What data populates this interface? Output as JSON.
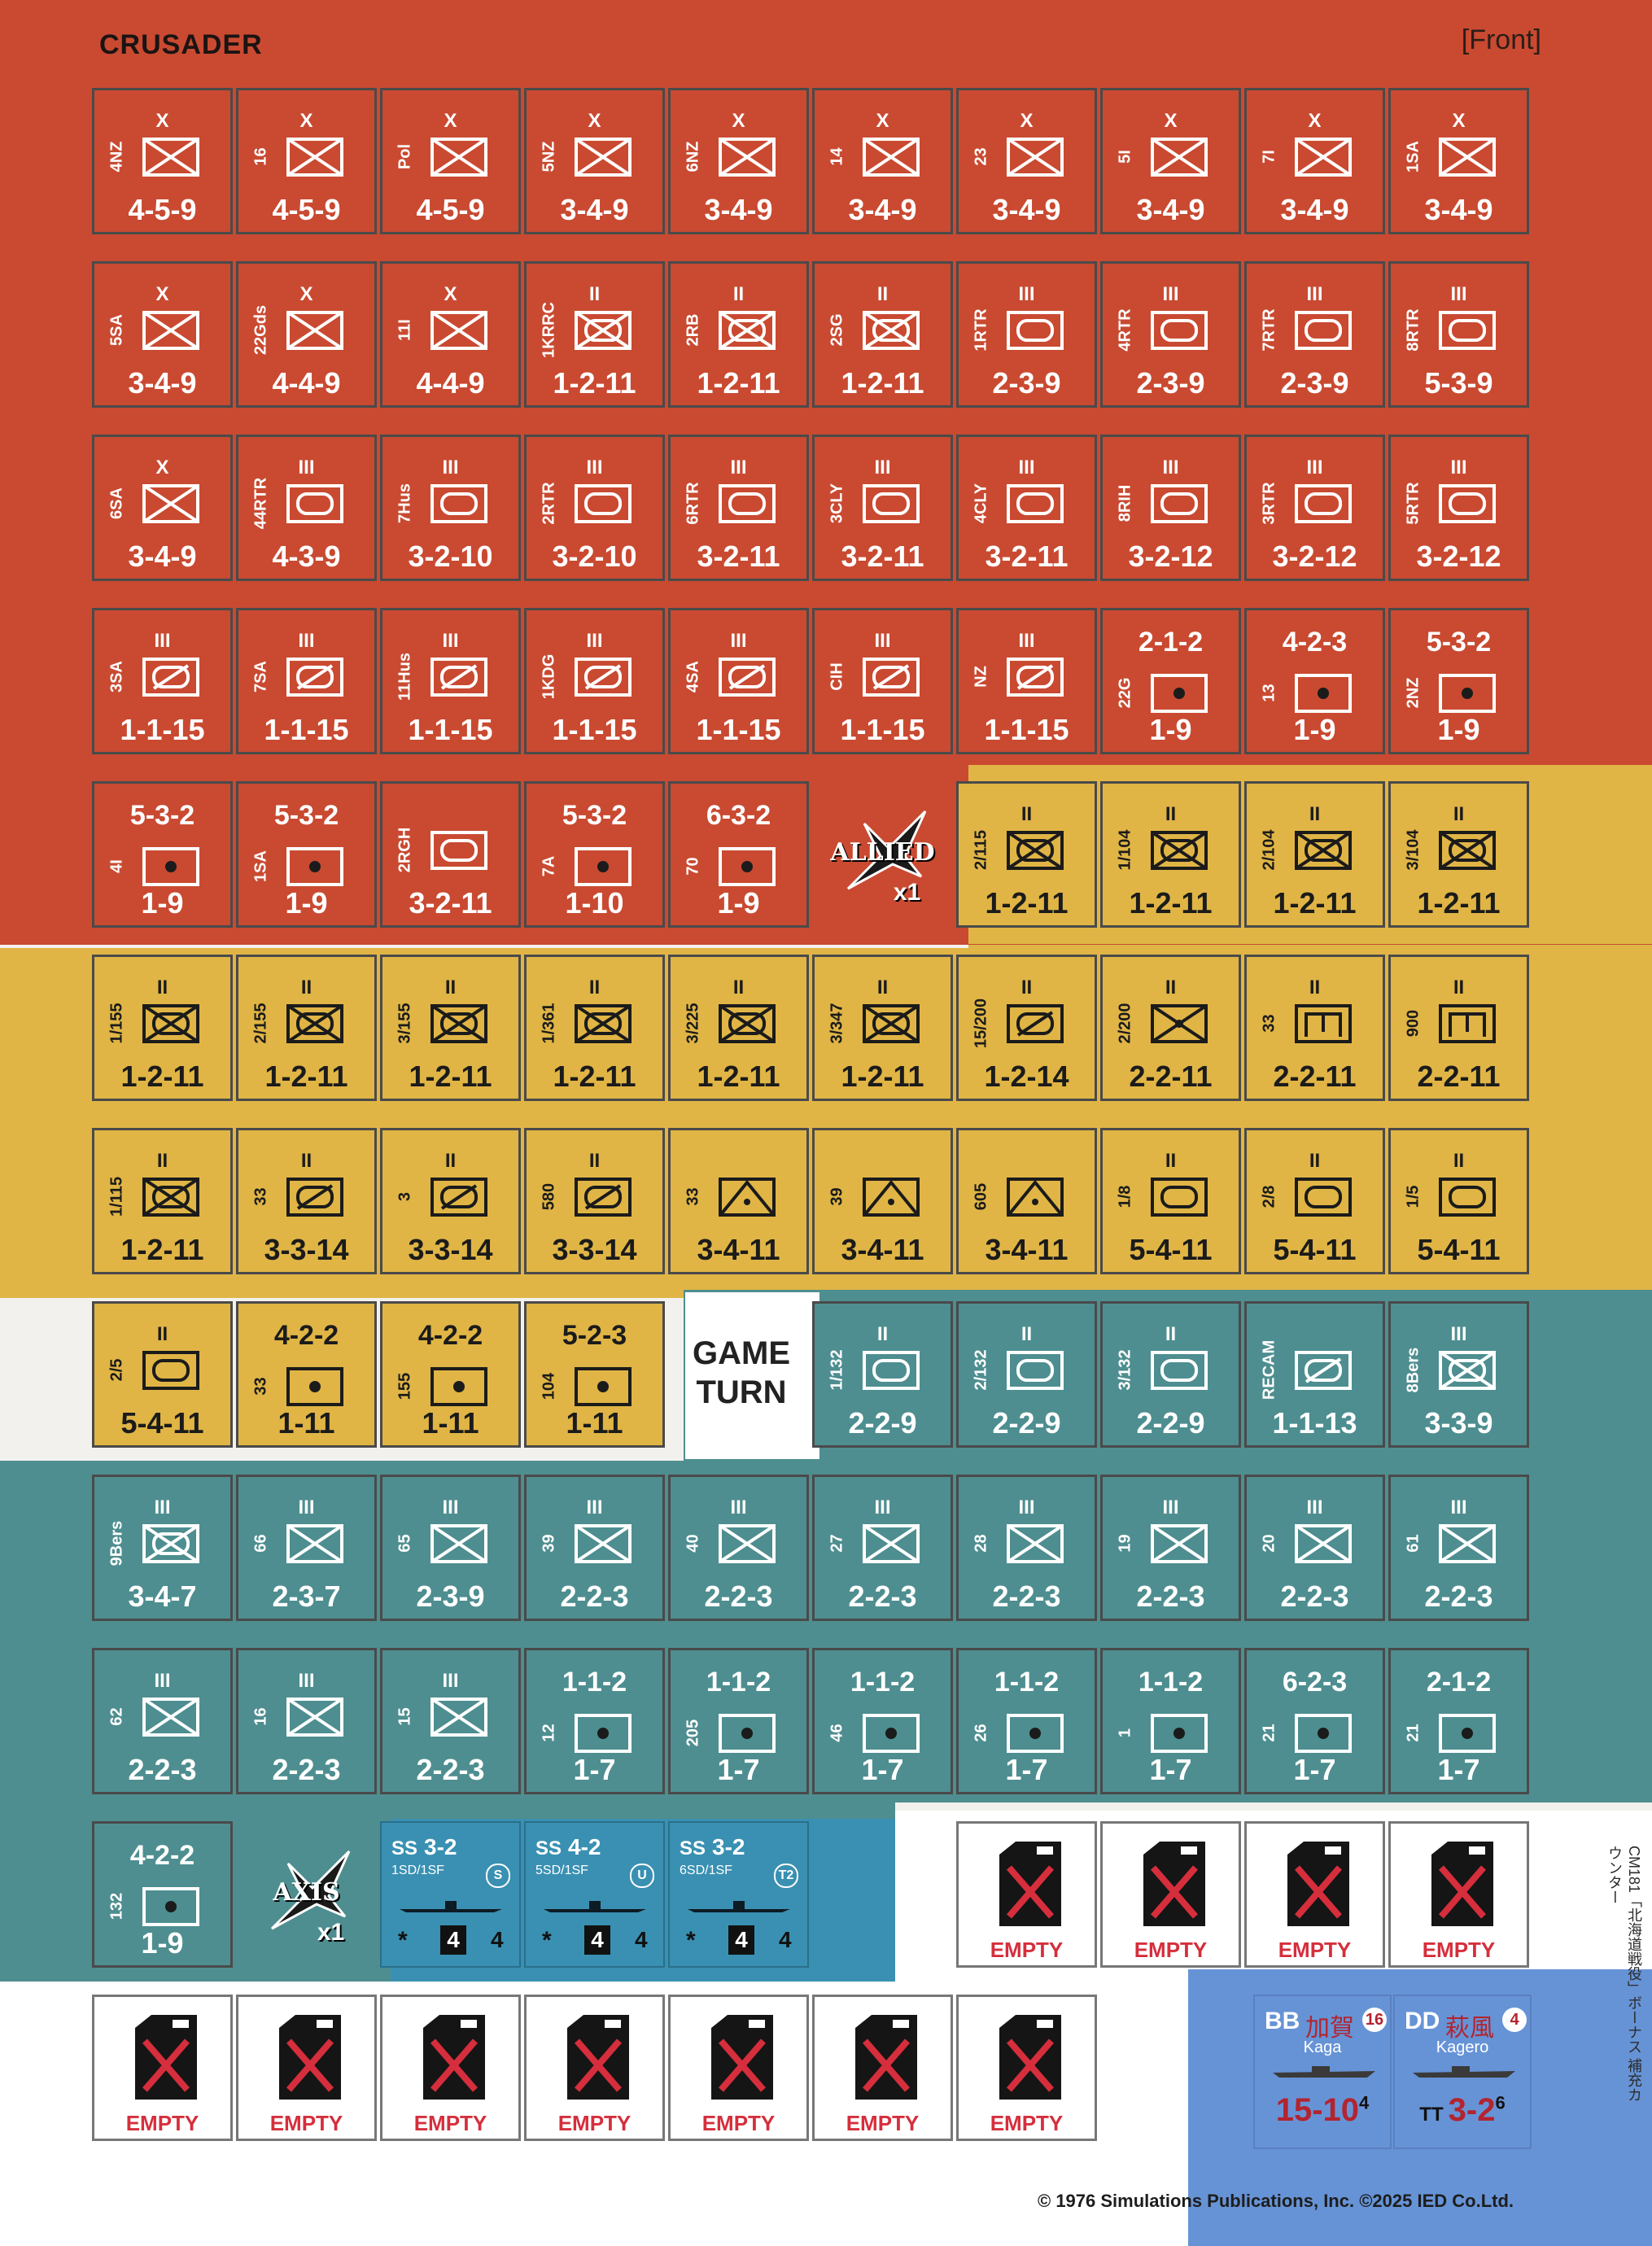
{
  "header": {
    "title": "CRUSADER",
    "side": "[Front]"
  },
  "colors": {
    "allied": "#c94a31",
    "italian": "#e0b545",
    "german": "#4e8e90",
    "special": "#3a90b2",
    "fuel": "#ffffff",
    "ships": "#6693d6",
    "empty_red": "#d62e3c"
  },
  "rows": [
    [
      {
        "id": "4NZ",
        "size": "X",
        "sym": "inf",
        "vals": "4-5-9"
      },
      {
        "id": "16",
        "size": "X",
        "sym": "inf",
        "vals": "4-5-9"
      },
      {
        "id": "Pol",
        "size": "X",
        "sym": "inf",
        "vals": "4-5-9"
      },
      {
        "id": "5NZ",
        "size": "X",
        "sym": "inf",
        "vals": "3-4-9"
      },
      {
        "id": "6NZ",
        "size": "X",
        "sym": "inf",
        "vals": "3-4-9"
      },
      {
        "id": "14",
        "size": "X",
        "sym": "inf",
        "vals": "3-4-9"
      },
      {
        "id": "23",
        "size": "X",
        "sym": "inf",
        "vals": "3-4-9"
      },
      {
        "id": "5I",
        "size": "X",
        "sym": "inf",
        "vals": "3-4-9"
      },
      {
        "id": "7I",
        "size": "X",
        "sym": "inf",
        "vals": "3-4-9"
      },
      {
        "id": "1SA",
        "size": "X",
        "sym": "inf",
        "vals": "3-4-9"
      }
    ],
    [
      {
        "id": "5SA",
        "size": "X",
        "sym": "inf",
        "vals": "3-4-9"
      },
      {
        "id": "22Gds",
        "size": "X",
        "sym": "inf",
        "vals": "4-4-9"
      },
      {
        "id": "11I",
        "size": "X",
        "sym": "inf",
        "vals": "4-4-9"
      },
      {
        "id": "1KRRC",
        "size": "II",
        "sym": "mech",
        "vals": "1-2-11"
      },
      {
        "id": "2RB",
        "size": "II",
        "sym": "mech",
        "vals": "1-2-11"
      },
      {
        "id": "2SG",
        "size": "II",
        "sym": "mech",
        "vals": "1-2-11"
      },
      {
        "id": "1RTR",
        "size": "III",
        "sym": "armor",
        "vals": "2-3-9"
      },
      {
        "id": "4RTR",
        "size": "III",
        "sym": "armor",
        "vals": "2-3-9"
      },
      {
        "id": "7RTR",
        "size": "III",
        "sym": "armor",
        "vals": "2-3-9"
      },
      {
        "id": "8RTR",
        "size": "III",
        "sym": "armor",
        "vals": "5-3-9"
      }
    ],
    [
      {
        "id": "6SA",
        "size": "X",
        "sym": "inf",
        "vals": "3-4-9"
      },
      {
        "id": "44RTR",
        "size": "III",
        "sym": "armor",
        "vals": "4-3-9"
      },
      {
        "id": "7Hus",
        "size": "III",
        "sym": "armor",
        "vals": "3-2-10"
      },
      {
        "id": "2RTR",
        "size": "III",
        "sym": "armor",
        "vals": "3-2-10"
      },
      {
        "id": "6RTR",
        "size": "III",
        "sym": "armor",
        "vals": "3-2-11"
      },
      {
        "id": "3CLY",
        "size": "III",
        "sym": "armor",
        "vals": "3-2-11"
      },
      {
        "id": "4CLY",
        "size": "III",
        "sym": "armor",
        "vals": "3-2-11"
      },
      {
        "id": "8RIH",
        "size": "III",
        "sym": "armor",
        "vals": "3-2-12"
      },
      {
        "id": "3RTR",
        "size": "III",
        "sym": "armor",
        "vals": "3-2-12"
      },
      {
        "id": "5RTR",
        "size": "III",
        "sym": "armor",
        "vals": "3-2-12"
      }
    ],
    [
      {
        "id": "3SA",
        "size": "III",
        "sym": "recon",
        "vals": "1-1-15"
      },
      {
        "id": "7SA",
        "size": "III",
        "sym": "recon",
        "vals": "1-1-15"
      },
      {
        "id": "11Hus",
        "size": "III",
        "sym": "recon",
        "vals": "1-1-15"
      },
      {
        "id": "1KDG",
        "size": "III",
        "sym": "recon",
        "vals": "1-1-15"
      },
      {
        "id": "4SA",
        "size": "III",
        "sym": "recon",
        "vals": "1-1-15"
      },
      {
        "id": "CIH",
        "size": "III",
        "sym": "recon",
        "vals": "1-1-15"
      },
      {
        "id": "NZ",
        "size": "III",
        "sym": "recon",
        "vals": "1-1-15"
      },
      {
        "id": "22G",
        "top": "2-1-2",
        "sym": "art",
        "vals": "1-9"
      },
      {
        "id": "13",
        "top": "4-2-3",
        "sym": "art",
        "vals": "1-9"
      },
      {
        "id": "2NZ",
        "top": "5-3-2",
        "sym": "art",
        "vals": "1-9"
      }
    ],
    [
      {
        "id": "4I",
        "top": "5-3-2",
        "sym": "art",
        "vals": "1-9"
      },
      {
        "id": "1SA",
        "top": "5-3-2",
        "sym": "art",
        "vals": "1-9"
      },
      {
        "id": "2RGH",
        "size": "",
        "sym": "armor",
        "vals": "3-2-11"
      },
      {
        "id": "7A",
        "top": "5-3-2",
        "sym": "art",
        "vals": "1-10"
      },
      {
        "id": "70",
        "top": "6-3-2",
        "sym": "art",
        "vals": "1-9"
      },
      {
        "air": "ALLIED",
        "mult": "x1"
      },
      {
        "id": "2/115",
        "size": "II",
        "sym": "mech",
        "vals": "1-2-11"
      },
      {
        "id": "1/104",
        "size": "II",
        "sym": "mech",
        "vals": "1-2-11"
      },
      {
        "id": "2/104",
        "size": "II",
        "sym": "mech",
        "vals": "1-2-11"
      },
      {
        "id": "3/104",
        "size": "II",
        "sym": "mech",
        "vals": "1-2-11"
      }
    ],
    [
      {
        "id": "1/155",
        "size": "II",
        "sym": "mech",
        "vals": "1-2-11"
      },
      {
        "id": "2/155",
        "size": "II",
        "sym": "mech",
        "vals": "1-2-11"
      },
      {
        "id": "3/155",
        "size": "II",
        "sym": "mech",
        "vals": "1-2-11"
      },
      {
        "id": "1/361",
        "size": "II",
        "sym": "mech",
        "vals": "1-2-11"
      },
      {
        "id": "3/225",
        "size": "II",
        "sym": "mech",
        "vals": "1-2-11"
      },
      {
        "id": "3/347",
        "size": "II",
        "sym": "mech",
        "vals": "1-2-11"
      },
      {
        "id": "15/200",
        "size": "II",
        "sym": "recon",
        "vals": "1-2-14"
      },
      {
        "id": "2/200",
        "size": "II",
        "sym": "mg",
        "vals": "2-2-11"
      },
      {
        "id": "33",
        "size": "II",
        "sym": "eng",
        "vals": "2-2-11"
      },
      {
        "id": "900",
        "size": "II",
        "sym": "eng",
        "vals": "2-2-11"
      }
    ],
    [
      {
        "id": "1/115",
        "size": "II",
        "sym": "mech",
        "vals": "1-2-11"
      },
      {
        "id": "33",
        "size": "II",
        "sym": "recon",
        "vals": "3-3-14"
      },
      {
        "id": "3",
        "size": "II",
        "sym": "recon",
        "vals": "3-3-14"
      },
      {
        "id": "580",
        "size": "II",
        "sym": "recon",
        "vals": "3-3-14"
      },
      {
        "id": "33",
        "size": "",
        "sym": "at",
        "vals": "3-4-11"
      },
      {
        "id": "39",
        "size": "",
        "sym": "at",
        "vals": "3-4-11"
      },
      {
        "id": "605",
        "size": "",
        "sym": "at",
        "vals": "3-4-11"
      },
      {
        "id": "1/8",
        "size": "II",
        "sym": "armor",
        "vals": "5-4-11"
      },
      {
        "id": "2/8",
        "size": "II",
        "sym": "armor",
        "vals": "5-4-11"
      },
      {
        "id": "1/5",
        "size": "II",
        "sym": "armor",
        "vals": "5-4-11"
      }
    ],
    [
      {
        "id": "2/5",
        "size": "II",
        "sym": "armor",
        "vals": "5-4-11"
      },
      {
        "id": "33",
        "top": "4-2-2",
        "sym": "art",
        "vals": "1-11"
      },
      {
        "id": "155",
        "top": "4-2-2",
        "sym": "art",
        "vals": "1-11"
      },
      {
        "id": "104",
        "top": "5-2-3",
        "sym": "art",
        "vals": "1-11"
      },
      {
        "gameturn": [
          "GAME",
          "TURN"
        ]
      },
      {
        "id": "1/132",
        "size": "II",
        "sym": "armor",
        "vals": "2-2-9"
      },
      {
        "id": "2/132",
        "size": "II",
        "sym": "armor",
        "vals": "2-2-9"
      },
      {
        "id": "3/132",
        "size": "II",
        "sym": "armor",
        "vals": "2-2-9"
      },
      {
        "id": "RECAM",
        "size": "",
        "sym": "recon",
        "vals": "1-1-13"
      },
      {
        "id": "8Bers",
        "size": "III",
        "sym": "mech",
        "vals": "3-3-9"
      }
    ],
    [
      {
        "id": "9Bers",
        "size": "III",
        "sym": "mech",
        "vals": "3-4-7"
      },
      {
        "id": "66",
        "size": "III",
        "sym": "inf",
        "vals": "2-3-7"
      },
      {
        "id": "65",
        "size": "III",
        "sym": "inf",
        "vals": "2-3-9"
      },
      {
        "id": "39",
        "size": "III",
        "sym": "inf",
        "vals": "2-2-3"
      },
      {
        "id": "40",
        "size": "III",
        "sym": "inf",
        "vals": "2-2-3"
      },
      {
        "id": "27",
        "size": "III",
        "sym": "inf",
        "vals": "2-2-3"
      },
      {
        "id": "28",
        "size": "III",
        "sym": "inf",
        "vals": "2-2-3"
      },
      {
        "id": "19",
        "size": "III",
        "sym": "inf",
        "vals": "2-2-3"
      },
      {
        "id": "20",
        "size": "III",
        "sym": "inf",
        "vals": "2-2-3"
      },
      {
        "id": "61",
        "size": "III",
        "sym": "inf",
        "vals": "2-2-3"
      }
    ],
    [
      {
        "id": "62",
        "size": "III",
        "sym": "inf",
        "vals": "2-2-3"
      },
      {
        "id": "16",
        "size": "III",
        "sym": "inf",
        "vals": "2-2-3"
      },
      {
        "id": "15",
        "size": "III",
        "sym": "inf",
        "vals": "2-2-3"
      },
      {
        "id": "12",
        "top": "1-1-2",
        "sym": "art",
        "vals": "1-7"
      },
      {
        "id": "205",
        "top": "1-1-2",
        "sym": "art",
        "vals": "1-7"
      },
      {
        "id": "46",
        "top": "1-1-2",
        "sym": "art",
        "vals": "1-7"
      },
      {
        "id": "26",
        "top": "1-1-2",
        "sym": "art",
        "vals": "1-7"
      },
      {
        "id": "1",
        "top": "1-1-2",
        "sym": "art",
        "vals": "1-7"
      },
      {
        "id": "21",
        "top": "6-2-3",
        "sym": "art",
        "vals": "1-7"
      },
      {
        "id": "21",
        "top": "2-1-2",
        "sym": "art",
        "vals": "1-7"
      }
    ]
  ],
  "row11": [
    {
      "id": "132",
      "top": "4-2-2",
      "sym": "art",
      "vals": "1-9"
    },
    {
      "air": "AXIS",
      "mult": "x1"
    },
    {
      "sub": {
        "type": "SS",
        "str": "3-2",
        "unit": "1SD/1SF",
        "badge": "S",
        "att": "4",
        "def": "4"
      }
    },
    {
      "sub": {
        "type": "SS",
        "str": "4-2",
        "unit": "5SD/1SF",
        "badge": "U",
        "att": "4",
        "def": "4"
      }
    },
    {
      "sub": {
        "type": "SS",
        "str": "3-2",
        "unit": "6SD/1SF",
        "badge": "T2",
        "att": "4",
        "def": "4"
      }
    }
  ],
  "fuel_label": "EMPTY",
  "ships": [
    {
      "type": "BB",
      "kanji": "加賀",
      "name": "Kaga",
      "badge": "16",
      "str": "15-10",
      "sup": "4",
      "pre": ""
    },
    {
      "type": "DD",
      "kanji": "萩風",
      "name": "Kagero",
      "badge": "4",
      "str": "3-2",
      "sup": "6",
      "pre": "TT"
    }
  ],
  "copyright": "© 1976  Simulations Publications, Inc.   ©2025 IED Co.Ltd.",
  "side_note": "CM181「北海道戦役」ボーナス 補充カウンター"
}
